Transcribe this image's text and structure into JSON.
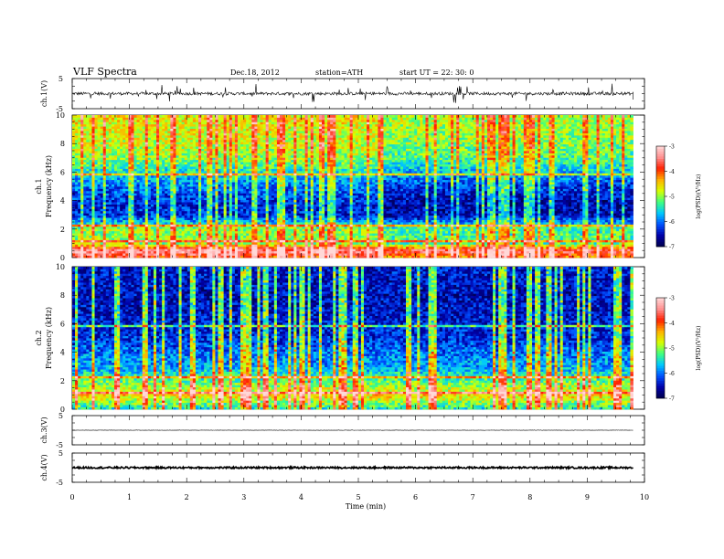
{
  "header": {
    "title": "VLF  Spectra",
    "date": "Dec.18, 2012",
    "station": "station=ATH",
    "start": "start  UT  =   22: 30: 0"
  },
  "colors": {
    "colormap": [
      "#00004a",
      "#0000a8",
      "#0050ff",
      "#00c8ff",
      "#40ff80",
      "#d8ff00",
      "#ffb000",
      "#ff2000",
      "#ff9090",
      "#ffd8d8"
    ],
    "trace": "#000000"
  },
  "chart_data": [
    {
      "type": "line",
      "panel": "ch1",
      "ylabel": "ch.1(V)",
      "yticks": [
        "5",
        "-5"
      ],
      "ylim": [
        -5,
        5
      ],
      "x": [
        0,
        10
      ],
      "description_values": {
        "baseline": 0,
        "typical_amplitude": 0.5,
        "spike_amplitude": 3
      }
    },
    {
      "type": "heatmap",
      "panel": "ch1",
      "ylabel": "ch.1\nFrequency  (kHz)",
      "ylabel_channel": "ch.1",
      "ylabel_axis": "Frequency  (kHz)",
      "yticks": [
        "0",
        "2",
        "4",
        "6",
        "8",
        "10"
      ],
      "ylim": [
        0,
        10
      ],
      "xlim": [
        0,
        9.8
      ],
      "colorbar": {
        "label": "log(PSD)(V²/Hz)",
        "ticks": [
          "-3",
          "-4",
          "-5",
          "-6",
          "-7"
        ],
        "range": [
          -7,
          -3
        ]
      },
      "band_profile_khz": [
        [
          0,
          -4.0
        ],
        [
          0.5,
          -3.3
        ],
        [
          1,
          -5.0
        ],
        [
          2,
          -5.0
        ],
        [
          3,
          -6.3
        ],
        [
          4,
          -6.3
        ],
        [
          5,
          -6.0
        ],
        [
          6,
          -5.5
        ],
        [
          7,
          -5.0
        ],
        [
          8,
          -4.8
        ],
        [
          10,
          -4.6
        ]
      ]
    },
    {
      "type": "heatmap",
      "panel": "ch2",
      "ylabel": "ch.2\nFrequency  (kHz)",
      "ylabel_channel": "ch.2",
      "ylabel_axis": "Frequency  (kHz)",
      "yticks": [
        "0",
        "2",
        "4",
        "6",
        "8",
        "10"
      ],
      "ylim": [
        0,
        10
      ],
      "xlim": [
        0,
        9.8
      ],
      "colorbar": {
        "label": "log(PSD)(V²/Hz)",
        "ticks": [
          "-3",
          "-4",
          "-5",
          "-6",
          "-7"
        ],
        "range": [
          -7,
          -3
        ]
      },
      "band_profile_khz": [
        [
          0,
          -5.5
        ],
        [
          1,
          -4.5
        ],
        [
          2,
          -5.2
        ],
        [
          3,
          -5.8
        ],
        [
          4,
          -6.0
        ],
        [
          5,
          -6.3
        ],
        [
          6,
          -6.4
        ],
        [
          8,
          -6.5
        ],
        [
          10,
          -6.4
        ]
      ]
    },
    {
      "type": "line",
      "panel": "ch3",
      "ylabel": "ch.3(V)",
      "yticks": [
        "5",
        "-5"
      ],
      "ylim": [
        -5,
        5
      ],
      "x": [
        0,
        9.8
      ],
      "description_values": {
        "baseline": 0,
        "typical_amplitude": 0.05
      }
    },
    {
      "type": "line",
      "panel": "ch4",
      "ylabel": "ch.4(V)",
      "yticks": [
        "5",
        "-5"
      ],
      "ylim": [
        -5,
        5
      ],
      "x": [
        0,
        9.8
      ],
      "description_values": {
        "baseline": 0,
        "typical_amplitude": 0.3
      }
    }
  ],
  "x_axis": {
    "label": "Time  (min)",
    "ticks": [
      "0",
      "1",
      "2",
      "3",
      "4",
      "5",
      "6",
      "7",
      "8",
      "9",
      "10"
    ],
    "range": [
      0,
      10
    ]
  }
}
